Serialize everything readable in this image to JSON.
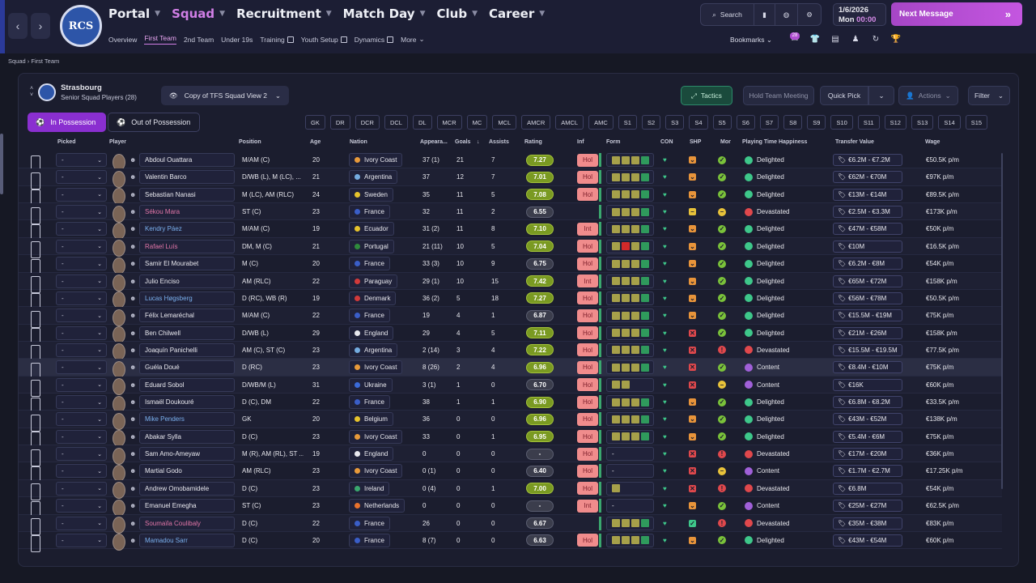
{
  "nav": {
    "back": "‹",
    "forward": "›",
    "club_logo": "RCS",
    "main": [
      {
        "label": "Portal"
      },
      {
        "label": "Squad"
      },
      {
        "label": "Recruitment"
      },
      {
        "label": "Match Day"
      },
      {
        "label": "Club"
      },
      {
        "label": "Career"
      }
    ],
    "sub": [
      {
        "label": "Overview"
      },
      {
        "label": "First Team"
      },
      {
        "label": "2nd Team"
      },
      {
        "label": "Under 19s"
      },
      {
        "label": "Training"
      },
      {
        "label": "Youth Setup"
      },
      {
        "label": "Dynamics"
      },
      {
        "label": "More"
      }
    ],
    "search_label": "Search",
    "date": "1/6/2026",
    "day": "Mon",
    "time": "00:00",
    "next_message": "Next Message",
    "bookmarks": "Bookmarks",
    "inbox_badge": "28"
  },
  "breadcrumb": [
    "Squad",
    "First Team"
  ],
  "club": {
    "name": "Strasbourg",
    "subtitle": "Senior Squad Players (28)"
  },
  "view": {
    "name": "Copy of TFS Squad View 2"
  },
  "toolbar": {
    "tactics": "Tactics",
    "hold": "Hold Team Meeting",
    "quick_pick": "Quick Pick",
    "actions": "Actions",
    "filter": "Filter"
  },
  "possession": {
    "in": "In Possession",
    "out": "Out of Possession"
  },
  "positions": [
    "GK",
    "DR",
    "DCR",
    "DCL",
    "DL",
    "MCR",
    "MC",
    "MCL",
    "AMCR",
    "AMCL",
    "AMC",
    "S1",
    "S2",
    "S3",
    "S4",
    "S5",
    "S6",
    "S7",
    "S8",
    "S9",
    "S10",
    "S11",
    "S12",
    "S13",
    "S14",
    "S15"
  ],
  "columns": {
    "picked": "Picked",
    "player": "Player",
    "position": "Position",
    "age": "Age",
    "nation": "Nation",
    "apps": "Appeara...",
    "goals": "Goals",
    "assists": "Assists",
    "rating": "Rating",
    "inf": "Inf",
    "form": "Form",
    "con": "CON",
    "shp": "SHP",
    "mor": "Mor",
    "pth": "Playing Time Happiness",
    "tv": "Transfer Value",
    "wage": "Wage"
  },
  "colors": {
    "accent": "#d17fe6",
    "rating_green": "#7a9a22",
    "rating_dark": "#3b3d4c",
    "inf": "#f08c8c",
    "happy": "#3ec78a",
    "unhappy": "#e0484c",
    "content": "#a060d8"
  },
  "players": [
    {
      "name": "Abdoul Ouattara",
      "pos": "M/AM (C)",
      "age": "20",
      "nation": "Ivory Coast",
      "apps": "37 (1)",
      "goals": "21",
      "assists": "7",
      "rating": "7.27",
      "inf": "Hol",
      "form": "GGGG",
      "con": "♥",
      "shp": "x",
      "mor": "g",
      "pth": "Delighted",
      "tv": "€6.2M - €7.2M",
      "wage": "€50.5K p/m"
    },
    {
      "name": "Valentin Barco",
      "pos": "D/WB (L), M (LC), ...",
      "age": "21",
      "nation": "Argentina",
      "apps": "37",
      "goals": "12",
      "assists": "7",
      "rating": "7.01",
      "inf": "Hol",
      "form": "GGGG",
      "con": "♥",
      "shp": "x",
      "mor": "g",
      "pth": "Delighted",
      "tv": "€62M - €70M",
      "wage": "€97K p/m"
    },
    {
      "name": "Sebastian Nanasi",
      "pos": "M (LC), AM (RLC)",
      "age": "24",
      "nation": "Sweden",
      "apps": "35",
      "goals": "11",
      "assists": "5",
      "rating": "7.08",
      "inf": "Hol",
      "form": "GGGG",
      "con": "♥",
      "shp": "x",
      "mor": "g",
      "pth": "Delighted",
      "tv": "€13M - €14M",
      "wage": "€89.5K p/m"
    },
    {
      "name": "Sékou Mara",
      "pos": "ST (C)",
      "age": "23",
      "nation": "France",
      "apps": "32",
      "goals": "11",
      "assists": "2",
      "rating": "6.55",
      "inf": "",
      "form": "GGGG",
      "con": "♥",
      "shp": "-",
      "mor": "y",
      "pth": "Devastated",
      "tv": "€2.5M - €3.3M",
      "wage": "€173K p/m"
    },
    {
      "name": "Kendry Páez",
      "pos": "M/AM (C)",
      "age": "19",
      "nation": "Ecuador",
      "apps": "31 (2)",
      "goals": "11",
      "assists": "8",
      "rating": "7.10",
      "inf": "Int",
      "form": "GGGG",
      "con": "♥",
      "shp": "x",
      "mor": "g",
      "pth": "Delighted",
      "tv": "€47M - €58M",
      "wage": "€50K p/m"
    },
    {
      "name": "Rafael Luís",
      "pos": "DM, M (C)",
      "age": "21",
      "nation": "Portugal",
      "apps": "21 (11)",
      "goals": "10",
      "assists": "5",
      "rating": "7.04",
      "inf": "Hol",
      "form": "GRGG",
      "con": "♥",
      "shp": "x",
      "mor": "g",
      "pth": "Delighted",
      "tv": "€10M",
      "wage": "€16.5K p/m"
    },
    {
      "name": "Samir El Mourabet",
      "pos": "M (C)",
      "age": "20",
      "nation": "France",
      "apps": "33 (3)",
      "goals": "10",
      "assists": "9",
      "rating": "6.75",
      "inf": "Hol",
      "form": "GGGG",
      "con": "♥",
      "shp": "x",
      "mor": "g",
      "pth": "Delighted",
      "tv": "€6.2M - €8M",
      "wage": "€54K p/m"
    },
    {
      "name": "Julio Enciso",
      "pos": "AM (RLC)",
      "age": "22",
      "nation": "Paraguay",
      "apps": "29 (1)",
      "goals": "10",
      "assists": "15",
      "rating": "7.42",
      "inf": "Int",
      "form": "GGGG",
      "con": "♥",
      "shp": "x",
      "mor": "g",
      "pth": "Delighted",
      "tv": "€65M - €72M",
      "wage": "€158K p/m"
    },
    {
      "name": "Lucas Høgsberg",
      "pos": "D (RC), WB (R)",
      "age": "19",
      "nation": "Denmark",
      "apps": "36 (2)",
      "goals": "5",
      "assists": "18",
      "rating": "7.27",
      "inf": "Hol",
      "form": "GGGG",
      "con": "♥",
      "shp": "x",
      "mor": "g",
      "pth": "Delighted",
      "tv": "€56M - €78M",
      "wage": "€50.5K p/m"
    },
    {
      "name": "Félix Lemaréchal",
      "pos": "M/AM (C)",
      "age": "22",
      "nation": "France",
      "apps": "19",
      "goals": "4",
      "assists": "1",
      "rating": "6.87",
      "inf": "Hol",
      "form": "GGGG",
      "con": "♥",
      "shp": "x",
      "mor": "g",
      "pth": "Delighted",
      "tv": "€15.5M - €19M",
      "wage": "€75K p/m"
    },
    {
      "name": "Ben Chilwell",
      "pos": "D/WB (L)",
      "age": "29",
      "nation": "England",
      "apps": "29",
      "goals": "4",
      "assists": "5",
      "rating": "7.11",
      "inf": "Hol",
      "form": "GGGG",
      "con": "♥",
      "shp": "r",
      "mor": "g",
      "pth": "Delighted",
      "tv": "€21M - €26M",
      "wage": "€158K p/m"
    },
    {
      "name": "Joaquín Panichelli",
      "pos": "AM (C), ST (C)",
      "age": "23",
      "nation": "Argentina",
      "apps": "2 (14)",
      "goals": "3",
      "assists": "4",
      "rating": "7.22",
      "inf": "Hol",
      "form": "GGGG",
      "con": "♥",
      "shp": "r",
      "mor": "r",
      "pth": "Devastated",
      "tv": "€15.5M - €19.5M",
      "wage": "€77.5K p/m"
    },
    {
      "name": "Guéla Doué",
      "pos": "D (RC)",
      "age": "23",
      "nation": "Ivory Coast",
      "apps": "8 (26)",
      "goals": "2",
      "assists": "4",
      "rating": "6.96",
      "inf": "Hol",
      "form": "GGGG",
      "con": "♥",
      "shp": "r",
      "mor": "g",
      "pth": "Content",
      "tv": "€8.4M - €10M",
      "wage": "€75K p/m"
    },
    {
      "name": "Eduard Sobol",
      "pos": "D/WB/M (L)",
      "age": "31",
      "nation": "Ukraine",
      "apps": "3 (1)",
      "goals": "1",
      "assists": "0",
      "rating": "6.70",
      "inf": "Hol",
      "form": "GG",
      "con": "♥",
      "shp": "r",
      "mor": "y",
      "pth": "Content",
      "tv": "€16K",
      "wage": "€60K p/m"
    },
    {
      "name": "Ismaël Doukouré",
      "pos": "D (C), DM",
      "age": "22",
      "nation": "France",
      "apps": "38",
      "goals": "1",
      "assists": "1",
      "rating": "6.90",
      "inf": "Hol",
      "form": "GGGG",
      "con": "♥",
      "shp": "x",
      "mor": "g",
      "pth": "Delighted",
      "tv": "€6.8M - €8.2M",
      "wage": "€33.5K p/m"
    },
    {
      "name": "Mike Penders",
      "pos": "GK",
      "age": "20",
      "nation": "Belgium",
      "apps": "36",
      "goals": "0",
      "assists": "0",
      "rating": "6.96",
      "inf": "Hol",
      "form": "GGGG",
      "con": "♥",
      "shp": "x",
      "mor": "g",
      "pth": "Delighted",
      "tv": "€43M - €52M",
      "wage": "€138K p/m"
    },
    {
      "name": "Abakar Sylla",
      "pos": "D (C)",
      "age": "23",
      "nation": "Ivory Coast",
      "apps": "33",
      "goals": "0",
      "assists": "1",
      "rating": "6.95",
      "inf": "Hol",
      "form": "GGGG",
      "con": "♥",
      "shp": "x",
      "mor": "g",
      "pth": "Delighted",
      "tv": "€5.4M - €6M",
      "wage": "€75K p/m"
    },
    {
      "name": "Sam Amo-Ameyaw",
      "pos": "M (R), AM (RL), ST ...",
      "age": "19",
      "nation": "England",
      "apps": "0",
      "goals": "0",
      "assists": "0",
      "rating": "-",
      "inf": "Hol",
      "form": "-",
      "con": "♥",
      "shp": "r",
      "mor": "r",
      "pth": "Devastated",
      "tv": "€17M - €20M",
      "wage": "€36K p/m"
    },
    {
      "name": "Martial Godo",
      "pos": "AM (RLC)",
      "age": "23",
      "nation": "Ivory Coast",
      "apps": "0 (1)",
      "goals": "0",
      "assists": "0",
      "rating": "6.40",
      "inf": "Hol",
      "form": "-",
      "con": "♥",
      "shp": "r",
      "mor": "y",
      "pth": "Content",
      "tv": "€1.7M - €2.7M",
      "wage": "€17.25K p/m"
    },
    {
      "name": "Andrew Omobamidele",
      "pos": "D (C)",
      "age": "23",
      "nation": "Ireland",
      "apps": "0 (4)",
      "goals": "0",
      "assists": "1",
      "rating": "7.00",
      "inf": "Hol",
      "form": "G",
      "con": "♥",
      "shp": "r",
      "mor": "r",
      "pth": "Devastated",
      "tv": "€6.8M",
      "wage": "€54K p/m"
    },
    {
      "name": "Emanuel Emegha",
      "pos": "ST (C)",
      "age": "23",
      "nation": "Netherlands",
      "apps": "0",
      "goals": "0",
      "assists": "0",
      "rating": "-",
      "inf": "Int",
      "form": "-",
      "con": "♥",
      "shp": "x",
      "mor": "g",
      "pth": "Content",
      "tv": "€25M - €27M",
      "wage": "€62.5K p/m"
    },
    {
      "name": "Soumaïla Coulibaly",
      "pos": "D (C)",
      "age": "22",
      "nation": "France",
      "apps": "26",
      "goals": "0",
      "assists": "0",
      "rating": "6.67",
      "inf": "",
      "form": "GGGG",
      "con": "♥",
      "shp": "v",
      "mor": "r",
      "pth": "Devastated",
      "tv": "€35M - €38M",
      "wage": "€83K p/m"
    },
    {
      "name": "Mamadou Sarr",
      "pos": "D (C)",
      "age": "20",
      "nation": "France",
      "apps": "8 (7)",
      "goals": "0",
      "assists": "0",
      "rating": "6.63",
      "inf": "Hol",
      "form": "GGGG",
      "con": "♥",
      "shp": "x",
      "mor": "g",
      "pth": "Delighted",
      "tv": "€43M - €54M",
      "wage": "€60K p/m"
    }
  ]
}
